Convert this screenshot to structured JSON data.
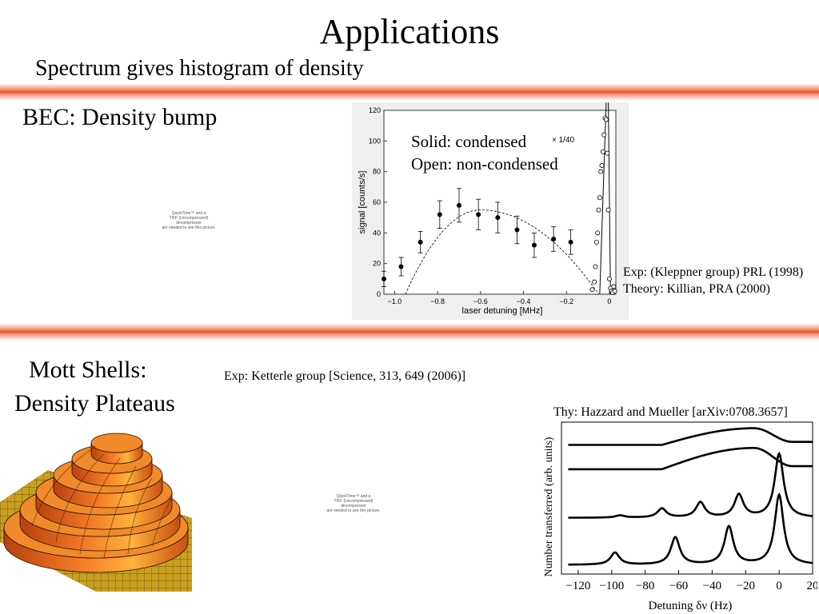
{
  "slide": {
    "title": "Applications",
    "subtitle": "Spectrum gives histogram of density",
    "band_color": "#e9542c"
  },
  "bec": {
    "heading": "BEC:  Density bump",
    "placeholder_lines": [
      "QuickTime™ and a",
      "TIFF (Uncompressed) decompressor",
      "are needed to see this picture."
    ],
    "citation_line1": "Exp: (Kleppner group) PRL (1998)",
    "citation_line2": "Theory: Killian, PRA (2000)",
    "chart_data": {
      "type": "scatter",
      "xlabel": "laser detuning [MHz]",
      "ylabel": "signal  [counts/s]",
      "xlim": [
        -1.05,
        0.03
      ],
      "ylim": [
        0,
        120
      ],
      "x_ticks": [
        -1.0,
        -0.8,
        -0.6,
        -0.4,
        -0.2,
        0
      ],
      "x_tick_labels": [
        "−1.0",
        "−0.8",
        "−0.6",
        "−0.4",
        "−0.2",
        "0"
      ],
      "y_ticks": [
        0,
        20,
        40,
        60,
        80,
        100,
        120
      ],
      "legend_solid": "Solid: condensed",
      "legend_open": "Open: non-condensed",
      "scale_note": "× 1/40",
      "condensed": {
        "x": [
          -1.05,
          -0.97,
          -0.88,
          -0.79,
          -0.7,
          -0.61,
          -0.52,
          -0.43,
          -0.35,
          -0.26,
          -0.18
        ],
        "y": [
          10,
          18,
          34,
          52,
          58,
          52,
          50,
          42,
          32,
          36,
          34
        ],
        "err": [
          5,
          6,
          7,
          9,
          11,
          10,
          10,
          9,
          8,
          8,
          8
        ]
      },
      "noncondensed": {
        "x": [
          -0.08,
          -0.07,
          -0.065,
          -0.06,
          -0.055,
          -0.05,
          -0.045,
          -0.04,
          -0.035,
          -0.03,
          -0.025,
          -0.02,
          -0.015,
          -0.01,
          -0.005,
          0.0,
          0.005,
          0.01,
          0.015,
          0.02,
          0.025
        ],
        "y": [
          3,
          8,
          18,
          34,
          40,
          55,
          63,
          80,
          84,
          93,
          104,
          115,
          114,
          92,
          55,
          10,
          4,
          2,
          1,
          5,
          2
        ]
      },
      "fit_dashed": {
        "x": [
          -0.95,
          -0.6,
          -0.05
        ],
        "y": [
          0,
          55,
          0
        ]
      }
    }
  },
  "mott": {
    "heading_line1": "Mott Shells:",
    "heading_line2": "Density Plateaus",
    "exp_citation": "Exp: Ketterle group [Science, 313, 649 (2006)]",
    "placeholder_lines": [
      "QuickTime™ and a",
      "TIFF (Uncompressed) decompressor",
      "are needed to see this picture."
    ],
    "theory_citation": "Thy: Hazzard and Mueller [arXiv:0708.3657]",
    "chart_data": {
      "type": "line",
      "xlabel": "Detuning δν (Hz)",
      "ylabel": "Number transferred (arb. units)",
      "xlim": [
        -130,
        20
      ],
      "x_ticks": [
        -120,
        -100,
        -80,
        -60,
        -40,
        -20,
        0,
        20
      ],
      "x_tick_labels": [
        "−120",
        "−100",
        "−80",
        "−60",
        "−40",
        "−20",
        "0",
        "20"
      ],
      "series_peaks": [
        {
          "baseline": 0.06,
          "peaks": [
            [
              -98,
              0.08
            ],
            [
              -62,
              0.18
            ],
            [
              -30,
              0.25
            ],
            [
              0,
              0.46
            ]
          ]
        },
        {
          "baseline": 0.37,
          "peaks": [
            [
              -95,
              0.015
            ],
            [
              -70,
              0.06
            ],
            [
              -47,
              0.1
            ],
            [
              -24,
              0.15
            ],
            [
              0,
              0.42
            ]
          ]
        }
      ],
      "series_smooth": [
        {
          "base": 0.69,
          "top": 0.83,
          "end": 0.71
        },
        {
          "base": 0.85,
          "top": 0.96,
          "end": 0.87
        }
      ]
    }
  },
  "surface3d": {
    "colors": {
      "mesh": "#c8a020",
      "tier": "#e8601e",
      "highlight": "#ffb23a"
    }
  }
}
